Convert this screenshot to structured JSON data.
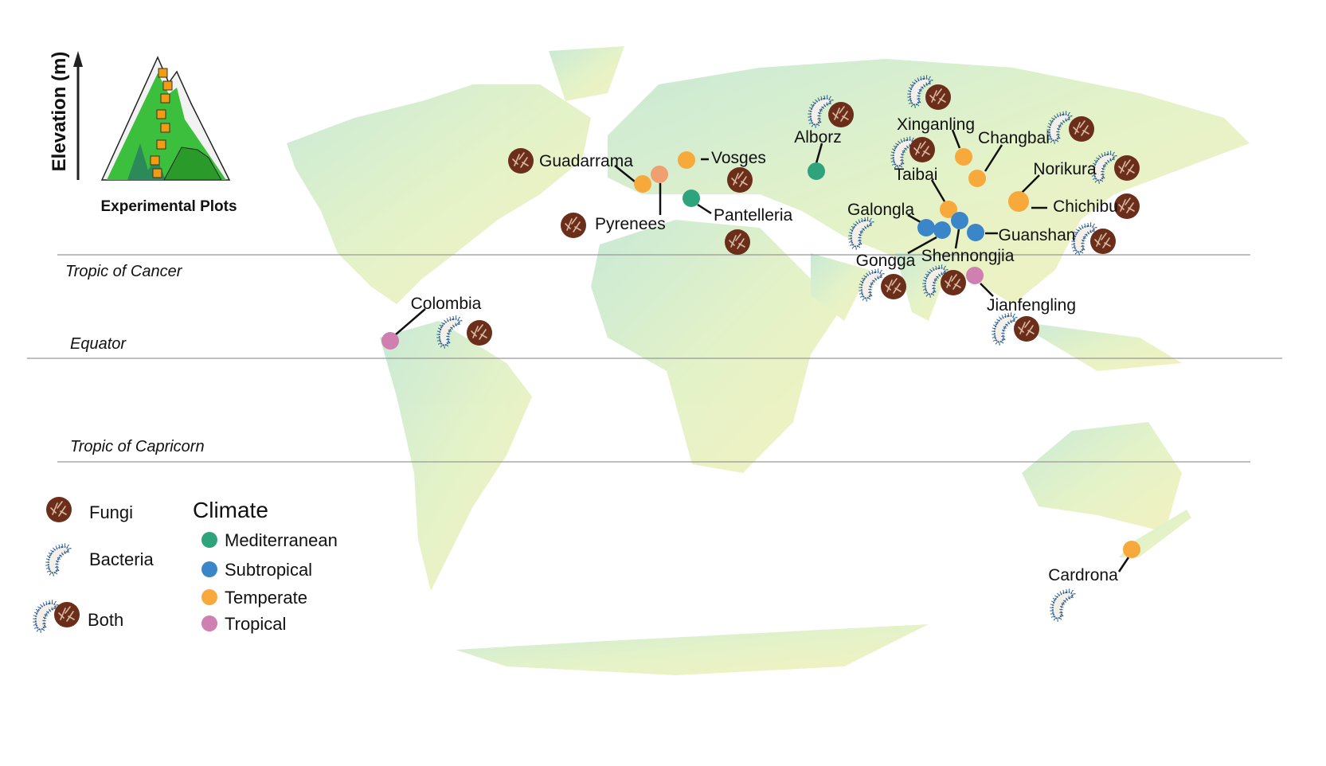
{
  "inset": {
    "axis_label": "Elevation (m)",
    "caption": "Experimental Plots"
  },
  "latitude_lines": {
    "tropic_of_cancer": "Tropic of Cancer",
    "equator": "Equator",
    "tropic_of_capricorn": "Tropic of Capricorn"
  },
  "legend": {
    "organisms": [
      {
        "key": "fungi",
        "label": "Fungi"
      },
      {
        "key": "bacteria",
        "label": "Bacteria"
      },
      {
        "key": "both",
        "label": "Both"
      }
    ],
    "climate_title": "Climate",
    "climates": [
      {
        "key": "mediterranean",
        "label": "Mediterranean",
        "color": "#2fa37c"
      },
      {
        "key": "subtropical",
        "label": "Subtropical",
        "color": "#3a86c8"
      },
      {
        "key": "temperate",
        "label": "Temperate",
        "color": "#f7a93b"
      },
      {
        "key": "tropical",
        "label": "Tropical",
        "color": "#cf7fb0"
      }
    ]
  },
  "colors": {
    "fungi": "#6b2e1a",
    "bacteria_outline": "#2a5d8f",
    "pyrenees_dot": "#f0a070",
    "land_low": "#bfe6cf",
    "land_high": "#f2efb4"
  },
  "sites": [
    {
      "name": "Guadarrama",
      "climate": "temperate",
      "organisms": "fungi"
    },
    {
      "name": "Pyrenees",
      "climate": "temperate",
      "organisms": "fungi"
    },
    {
      "name": "Vosges",
      "climate": "temperate",
      "organisms": "fungi"
    },
    {
      "name": "Pantelleria",
      "climate": "mediterranean",
      "organisms": "fungi"
    },
    {
      "name": "Alborz",
      "climate": "mediterranean",
      "organisms": "both"
    },
    {
      "name": "Xinganling",
      "climate": "temperate",
      "organisms": "both"
    },
    {
      "name": "Changbai",
      "climate": "temperate",
      "organisms": "both"
    },
    {
      "name": "Taibai",
      "climate": "temperate",
      "organisms": "both"
    },
    {
      "name": "Norikura",
      "climate": "temperate",
      "organisms": "both"
    },
    {
      "name": "Chichibu",
      "climate": "temperate",
      "organisms": "fungi"
    },
    {
      "name": "Galongla",
      "climate": "subtropical",
      "organisms": "bacteria"
    },
    {
      "name": "Gongga",
      "climate": "subtropical",
      "organisms": "both"
    },
    {
      "name": "Shennongjia",
      "climate": "subtropical",
      "organisms": "both"
    },
    {
      "name": "Guanshan",
      "climate": "subtropical",
      "organisms": "both"
    },
    {
      "name": "Jianfengling",
      "climate": "tropical",
      "organisms": "both"
    },
    {
      "name": "Colombia",
      "climate": "tropical",
      "organisms": "both"
    },
    {
      "name": "Cardrona",
      "climate": "temperate",
      "organisms": "bacteria"
    }
  ]
}
